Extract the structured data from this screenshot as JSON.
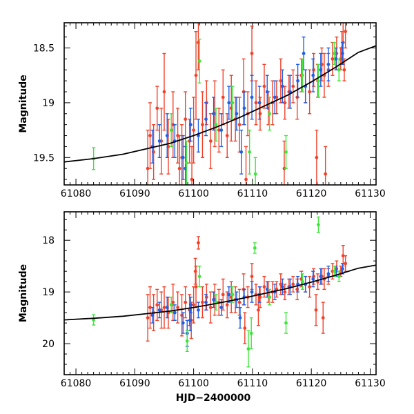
{
  "colors": {
    "red": "#f2412a",
    "blue": "#1f5fe8",
    "green": "#3ee63a",
    "curve": "#000000"
  },
  "chart_data": [
    {
      "type": "scatter",
      "panel": "top",
      "title": "",
      "xlabel": "",
      "ylabel": "Magnitude",
      "xlim": [
        61078,
        61131
      ],
      "ylim": [
        19.75,
        18.27
      ],
      "y_inverted": true,
      "xticks": [
        61080,
        61090,
        61100,
        61110,
        61120,
        61130
      ],
      "xtick_labels": [
        "61080",
        "61090",
        "61100",
        "61110",
        "61120",
        "61130"
      ],
      "yticks": [
        18.5,
        19,
        19.5
      ],
      "ytick_labels": [
        "18.5",
        "19",
        "19.5"
      ],
      "model_curve": {
        "x": [
          61078,
          61083,
          61088,
          61092,
          61096,
          61100,
          61104,
          61108,
          61112,
          61116,
          61120,
          61124,
          61128,
          61131
        ],
        "y": [
          19.54,
          19.51,
          19.47,
          19.42,
          19.37,
          19.3,
          19.22,
          19.13,
          19.03,
          18.93,
          18.81,
          18.68,
          18.54,
          18.48
        ]
      },
      "series": [
        {
          "name": "red",
          "color": "red",
          "x": [
            61092.2,
            61092.6,
            61093.2,
            61093.8,
            61094.5,
            61095.0,
            61095.7,
            61096.5,
            61097.3,
            61098.0,
            61098.6,
            61099.3,
            61100.0,
            61100.4,
            61100.8,
            61101.5,
            61102.2,
            61102.9,
            61103.6,
            61104.3,
            61105.0,
            61105.7,
            61106.4,
            61107.1,
            61107.8,
            61108.5,
            61109.2,
            61109.9,
            61110.6,
            61111.3,
            61112.0,
            61112.7,
            61113.4,
            61114.1,
            61114.8,
            61115.5,
            61116.2,
            61116.9,
            61117.6,
            61118.3,
            61119.0,
            61119.7,
            61120.4,
            61121.1,
            61121.8,
            61122.2,
            61122.9,
            61123.6,
            61124.3,
            61125.0,
            61125.4,
            61125.8,
            61125.6,
            61125.2,
            61120.9,
            61122.4,
            61115.4,
            61108.9,
            61099.7,
            61097.6
          ],
          "y": [
            19.6,
            19.3,
            19.45,
            19.05,
            19.35,
            18.9,
            19.4,
            19.2,
            19.3,
            19.5,
            19.15,
            19.35,
            19.25,
            18.75,
            18.45,
            19.2,
            19.0,
            19.35,
            19.1,
            19.25,
            18.95,
            19.3,
            19.05,
            19.15,
            19.2,
            18.9,
            19.1,
            18.55,
            19.0,
            19.1,
            18.85,
            19.05,
            19.0,
            18.95,
            18.8,
            19.0,
            18.9,
            18.85,
            18.95,
            18.75,
            18.85,
            18.9,
            18.7,
            18.8,
            18.65,
            18.75,
            18.7,
            18.6,
            18.55,
            18.6,
            18.45,
            18.35,
            18.7,
            18.5,
            19.5,
            19.65,
            19.6,
            19.7,
            19.7,
            19.6
          ],
          "err": [
            0.35,
            0.3,
            0.25,
            0.2,
            0.3,
            0.35,
            0.25,
            0.3,
            0.25,
            0.3,
            0.25,
            0.2,
            0.3,
            0.4,
            0.25,
            0.3,
            0.2,
            0.25,
            0.3,
            0.2,
            0.25,
            0.2,
            0.3,
            0.2,
            0.25,
            0.3,
            0.2,
            0.25,
            0.2,
            0.15,
            0.2,
            0.15,
            0.2,
            0.15,
            0.2,
            0.15,
            0.15,
            0.15,
            0.2,
            0.15,
            0.15,
            0.2,
            0.15,
            0.15,
            0.15,
            0.2,
            0.15,
            0.15,
            0.15,
            0.1,
            0.2,
            0.15,
            0.1,
            0.15,
            0.25,
            0.25,
            0.25,
            0.3,
            0.3,
            0.3
          ]
        },
        {
          "name": "blue",
          "color": "blue",
          "x": [
            61093.0,
            61094.2,
            61095.5,
            61096.8,
            61098.2,
            61099.5,
            61100.8,
            61102.1,
            61103.4,
            61104.7,
            61106.0,
            61107.3,
            61108.6,
            61109.9,
            61111.2,
            61112.5,
            61113.8,
            61115.1,
            61116.4,
            61117.7,
            61119.0,
            61120.3,
            61121.6,
            61122.9,
            61124.2,
            61125.3,
            61098.6,
            61108.1,
            61118.7
          ],
          "y": [
            19.4,
            19.35,
            19.3,
            19.35,
            19.5,
            19.2,
            19.3,
            19.15,
            19.1,
            19.25,
            19.0,
            19.1,
            19.05,
            18.95,
            19.0,
            18.9,
            18.95,
            18.85,
            18.9,
            18.8,
            18.85,
            18.75,
            18.7,
            18.65,
            18.6,
            18.55,
            19.6,
            19.45,
            18.55
          ],
          "err": [
            0.15,
            0.15,
            0.2,
            0.15,
            0.2,
            0.15,
            0.15,
            0.15,
            0.15,
            0.15,
            0.15,
            0.15,
            0.15,
            0.2,
            0.15,
            0.15,
            0.15,
            0.15,
            0.15,
            0.15,
            0.15,
            0.15,
            0.15,
            0.15,
            0.1,
            0.1,
            0.2,
            0.2,
            0.15
          ]
        },
        {
          "name": "green",
          "color": "green",
          "x": [
            61083.0,
            61096.2,
            61098.8,
            61101.0,
            61103.8,
            61106.6,
            61109.5,
            61110.5,
            61112.9,
            61115.7,
            61118.5,
            61121.2,
            61123.9,
            61124.7
          ],
          "y": [
            19.51,
            19.25,
            19.55,
            18.62,
            19.2,
            19.0,
            19.45,
            19.65,
            19.1,
            19.45,
            18.75,
            18.8,
            18.55,
            18.7
          ],
          "err": [
            0.1,
            0.15,
            0.2,
            0.2,
            0.15,
            0.15,
            0.2,
            0.15,
            0.15,
            0.15,
            0.15,
            0.15,
            0.1,
            0.1
          ]
        }
      ]
    },
    {
      "type": "scatter",
      "panel": "bottom",
      "title": "",
      "xlabel": "HJD−2400000",
      "ylabel": "Magnitude",
      "xlim": [
        61078,
        61131
      ],
      "ylim": [
        20.6,
        17.45
      ],
      "y_inverted": true,
      "xticks": [
        61080,
        61090,
        61100,
        61110,
        61120,
        61130
      ],
      "xtick_labels": [
        "61080",
        "61090",
        "61100",
        "61110",
        "61120",
        "61130"
      ],
      "yticks": [
        18,
        19,
        20
      ],
      "ytick_labels": [
        "18",
        "19",
        "20"
      ],
      "model_curve": {
        "x": [
          61078,
          61083,
          61088,
          61092,
          61096,
          61100,
          61104,
          61108,
          61112,
          61116,
          61120,
          61124,
          61128,
          61131
        ],
        "y": [
          19.54,
          19.51,
          19.47,
          19.42,
          19.37,
          19.3,
          19.22,
          19.13,
          19.03,
          18.93,
          18.81,
          18.68,
          18.54,
          18.48
        ]
      },
      "series": [
        {
          "name": "red",
          "color": "red",
          "x": [
            61092.2,
            61092.6,
            61093.2,
            61093.8,
            61094.5,
            61095.0,
            61095.7,
            61096.5,
            61097.3,
            61098.0,
            61098.6,
            61099.3,
            61100.0,
            61100.4,
            61100.8,
            61101.5,
            61102.2,
            61102.9,
            61103.6,
            61104.3,
            61105.0,
            61105.7,
            61106.4,
            61107.1,
            61107.8,
            61108.5,
            61109.2,
            61109.9,
            61110.6,
            61111.3,
            61112.0,
            61112.7,
            61113.4,
            61114.1,
            61114.8,
            61115.5,
            61116.2,
            61116.9,
            61117.6,
            61118.3,
            61119.0,
            61119.7,
            61120.4,
            61121.1,
            61121.8,
            61122.2,
            61122.9,
            61123.6,
            61124.3,
            61125.0,
            61125.4,
            61125.8,
            61100.3,
            61108.7,
            61111.0,
            61120.8,
            61122.0,
            61099.6
          ],
          "y": [
            19.5,
            19.3,
            19.4,
            19.25,
            19.35,
            19.3,
            19.4,
            19.2,
            19.3,
            19.45,
            19.2,
            19.35,
            19.25,
            18.9,
            18.05,
            19.2,
            19.1,
            19.3,
            19.15,
            19.2,
            19.05,
            19.25,
            19.1,
            19.15,
            19.2,
            18.95,
            19.1,
            18.7,
            19.05,
            19.1,
            18.9,
            19.0,
            19.0,
            18.95,
            18.85,
            19.0,
            18.9,
            18.85,
            18.95,
            18.75,
            18.85,
            18.9,
            18.7,
            18.8,
            18.7,
            18.75,
            18.7,
            18.6,
            18.55,
            18.6,
            18.3,
            18.45,
            18.6,
            19.7,
            19.35,
            19.35,
            19.5,
            19.55
          ],
          "err": [
            0.45,
            0.4,
            0.35,
            0.3,
            0.35,
            0.4,
            0.3,
            0.35,
            0.3,
            0.4,
            0.3,
            0.3,
            0.35,
            0.4,
            0.12,
            0.3,
            0.25,
            0.3,
            0.3,
            0.25,
            0.3,
            0.25,
            0.3,
            0.25,
            0.25,
            0.3,
            0.2,
            0.25,
            0.2,
            0.2,
            0.2,
            0.2,
            0.2,
            0.15,
            0.2,
            0.15,
            0.15,
            0.15,
            0.2,
            0.15,
            0.15,
            0.2,
            0.15,
            0.15,
            0.15,
            0.2,
            0.15,
            0.15,
            0.15,
            0.1,
            0.2,
            0.15,
            0.25,
            0.3,
            0.3,
            0.3,
            0.3,
            0.35
          ]
        },
        {
          "name": "blue",
          "color": "blue",
          "x": [
            61093.0,
            61094.2,
            61095.5,
            61096.8,
            61098.2,
            61099.5,
            61100.8,
            61102.1,
            61103.4,
            61104.7,
            61106.0,
            61107.3,
            61108.6,
            61109.9,
            61111.2,
            61112.5,
            61113.8,
            61115.1,
            61116.4,
            61117.7,
            61119.0,
            61120.3,
            61121.6,
            61122.9,
            61124.2,
            61125.3,
            61098.9,
            61107.9,
            61099.4
          ],
          "y": [
            19.45,
            19.35,
            19.3,
            19.4,
            19.6,
            19.25,
            19.35,
            19.2,
            19.15,
            19.3,
            19.05,
            19.15,
            19.1,
            19.0,
            19.05,
            18.95,
            19.0,
            18.9,
            18.9,
            18.85,
            18.85,
            18.75,
            18.7,
            18.65,
            18.6,
            18.55,
            19.8,
            19.5,
            19.55
          ],
          "err": [
            0.15,
            0.15,
            0.2,
            0.15,
            0.2,
            0.15,
            0.15,
            0.15,
            0.15,
            0.15,
            0.15,
            0.15,
            0.15,
            0.2,
            0.15,
            0.15,
            0.15,
            0.15,
            0.15,
            0.15,
            0.15,
            0.15,
            0.15,
            0.15,
            0.1,
            0.1,
            0.25,
            0.2,
            0.2
          ]
        },
        {
          "name": "green",
          "color": "green",
          "x": [
            61083.0,
            61096.2,
            61098.9,
            61101.0,
            61103.8,
            61106.6,
            61109.3,
            61109.8,
            61110.4,
            61112.9,
            61115.7,
            61118.5,
            61121.2,
            61123.9,
            61124.7
          ],
          "y": [
            19.54,
            19.25,
            19.95,
            18.7,
            19.2,
            19.05,
            20.1,
            19.8,
            18.15,
            19.1,
            19.6,
            18.8,
            17.7,
            18.6,
            18.7
          ],
          "err": [
            0.1,
            0.15,
            0.2,
            0.2,
            0.15,
            0.15,
            0.35,
            0.3,
            0.1,
            0.15,
            0.2,
            0.15,
            0.15,
            0.1,
            0.1
          ]
        }
      ]
    }
  ]
}
